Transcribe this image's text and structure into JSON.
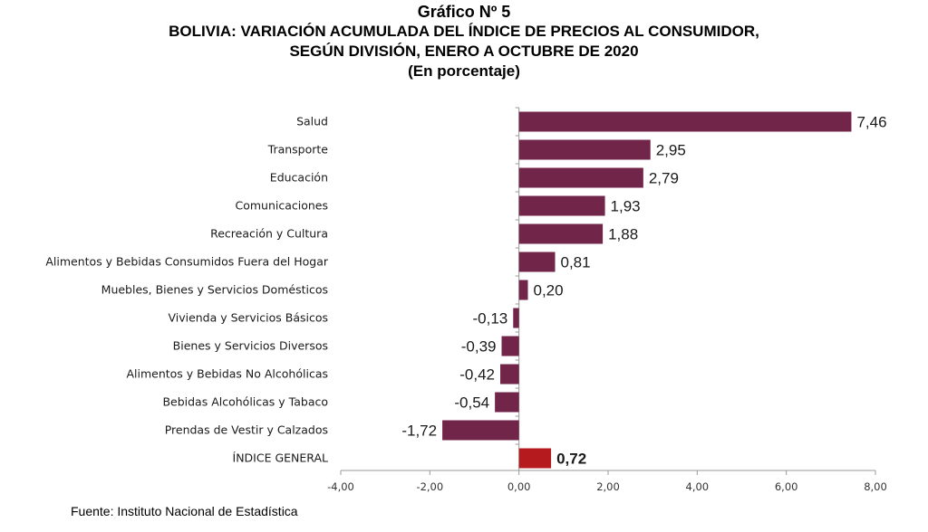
{
  "header": {
    "line1": "Gráfico Nº 5",
    "line2": "BOLIVIA: VARIACIÓN ACUMULADA DEL ÍNDICE DE PRECIOS AL CONSUMIDOR,",
    "line3": "SEGÚN DIVISIÓN, ENERO A OCTUBRE DE 2020",
    "line4": "(En porcentaje)"
  },
  "source": "Fuente: Instituto Nacional de Estadística",
  "colors": {
    "bar": "#702549",
    "highlight": "#b51a1f",
    "axis": "#999999"
  },
  "chart_data": {
    "type": "bar",
    "orientation": "horizontal",
    "title": "BOLIVIA: VARIACIÓN ACUMULADA DEL ÍNDICE DE PRECIOS AL CONSUMIDOR, SEGÚN DIVISIÓN, ENERO A OCTUBRE DE 2020",
    "xlim": [
      -4,
      8
    ],
    "ticks": [
      "-4,00",
      "-2,00",
      "0,00",
      "2,00",
      "4,00",
      "6,00",
      "8,00"
    ],
    "tick_values": [
      -4,
      -2,
      0,
      2,
      4,
      6,
      8
    ],
    "grid": false,
    "categories": [
      "Salud",
      "Transporte",
      "Educación",
      "Comunicaciones",
      "Recreación y Cultura",
      "Alimentos y Bebidas Consumidos Fuera del Hogar",
      "Muebles, Bienes y Servicios Domésticos",
      "Vivienda y Servicios Básicos",
      "Bienes y Servicios Diversos",
      "Alimentos y Bebidas No Alcohólicas",
      "Bebidas Alcohólicas y Tabaco",
      "Prendas de Vestir y Calzados",
      "ÍNDICE GENERAL"
    ],
    "values": [
      7.46,
      2.95,
      2.79,
      1.93,
      1.88,
      0.81,
      0.2,
      -0.13,
      -0.39,
      -0.42,
      -0.54,
      -1.72,
      0.72
    ],
    "labels": [
      "7,46",
      "2,95",
      "2,79",
      "1,93",
      "1,88",
      "0,81",
      "0,20",
      "-0,13",
      "-0,39",
      "-0,42",
      "-0,54",
      "-1,72",
      "0,72"
    ],
    "highlight": "ÍNDICE GENERAL"
  }
}
